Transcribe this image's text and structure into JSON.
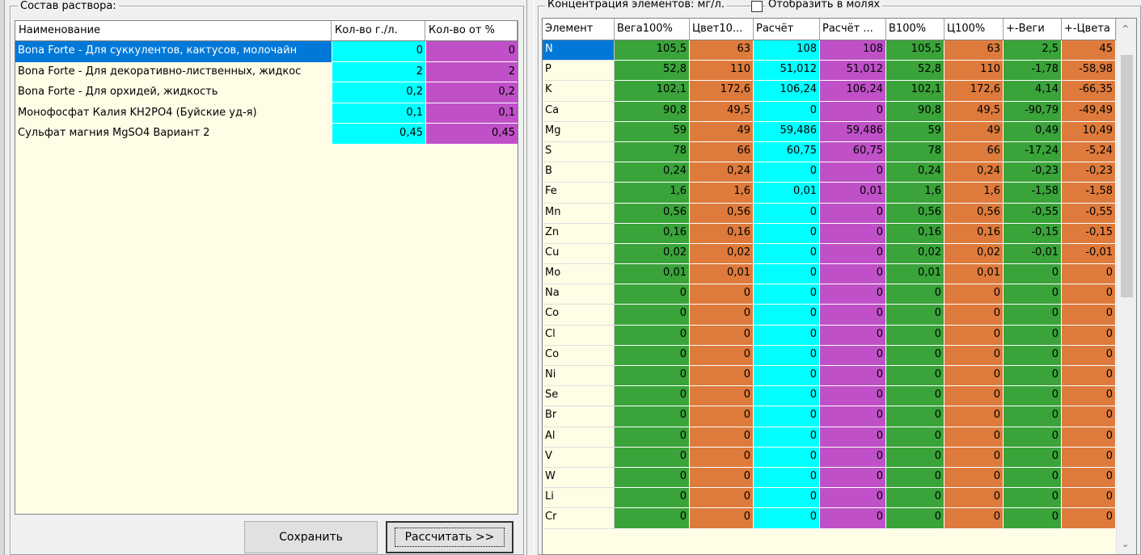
{
  "left": {
    "group_title": "Состав раствора:",
    "headers": {
      "name": "Наименование",
      "qty": "Кол-во г./л.",
      "pct": "Кол-во от %"
    },
    "rows": [
      {
        "name": "Bona Forte - Для суккулентов, кактусов, молочайн",
        "qty": "0",
        "pct": "0"
      },
      {
        "name": "Bona Forte - Для декоративно-лиственных, жидкос",
        "qty": "2",
        "pct": "2"
      },
      {
        "name": "Bona Forte - Для орхидей, жидкость",
        "qty": "0,2",
        "pct": "0,2"
      },
      {
        "name": "Монофосфат Калия KH2PO4 (Буйские уд-я)",
        "qty": "0,1",
        "pct": "0,1"
      },
      {
        "name": "Сульфат магния MgSO4 Вариант 2",
        "qty": "0,45",
        "pct": "0,45"
      }
    ],
    "save_label": "Сохранить",
    "calc_label": "Рассчитать >>"
  },
  "right": {
    "group_title": "Концентрация элементов: мг/л.",
    "checkbox_label": "Отобразить в молях",
    "headers": [
      "Элемент",
      "Вега100%",
      "Цвет10...",
      "Расчёт",
      "Расчёт ...",
      "В100%",
      "Ц100%",
      "+-Веги",
      "+-Цвета"
    ],
    "rows": [
      [
        "N",
        "105,5",
        "63",
        "108",
        "108",
        "105,5",
        "63",
        "2,5",
        "45"
      ],
      [
        "P",
        "52,8",
        "110",
        "51,012",
        "51,012",
        "52,8",
        "110",
        "-1,78",
        "-58,98"
      ],
      [
        "K",
        "102,1",
        "172,6",
        "106,24",
        "106,24",
        "102,1",
        "172,6",
        "4,14",
        "-66,35"
      ],
      [
        "Ca",
        "90,8",
        "49,5",
        "0",
        "0",
        "90,8",
        "49,5",
        "-90,79",
        "-49,49"
      ],
      [
        "Mg",
        "59",
        "49",
        "59,486",
        "59,486",
        "59",
        "49",
        "0,49",
        "10,49"
      ],
      [
        "S",
        "78",
        "66",
        "60,75",
        "60,75",
        "78",
        "66",
        "-17,24",
        "-5,24"
      ],
      [
        "B",
        "0,24",
        "0,24",
        "0",
        "0",
        "0,24",
        "0,24",
        "-0,23",
        "-0,23"
      ],
      [
        "Fe",
        "1,6",
        "1,6",
        "0,01",
        "0,01",
        "1,6",
        "1,6",
        "-1,58",
        "-1,58"
      ],
      [
        "Mn",
        "0,56",
        "0,56",
        "0",
        "0",
        "0,56",
        "0,56",
        "-0,55",
        "-0,55"
      ],
      [
        "Zn",
        "0,16",
        "0,16",
        "0",
        "0",
        "0,16",
        "0,16",
        "-0,15",
        "-0,15"
      ],
      [
        "Cu",
        "0,02",
        "0,02",
        "0",
        "0",
        "0,02",
        "0,02",
        "-0,01",
        "-0,01"
      ],
      [
        "Mo",
        "0,01",
        "0,01",
        "0",
        "0",
        "0,01",
        "0,01",
        "0",
        "0"
      ],
      [
        "Na",
        "0",
        "0",
        "0",
        "0",
        "0",
        "0",
        "0",
        "0"
      ],
      [
        "Co",
        "0",
        "0",
        "0",
        "0",
        "0",
        "0",
        "0",
        "0"
      ],
      [
        "Cl",
        "0",
        "0",
        "0",
        "0",
        "0",
        "0",
        "0",
        "0"
      ],
      [
        "Co",
        "0",
        "0",
        "0",
        "0",
        "0",
        "0",
        "0",
        "0"
      ],
      [
        "Ni",
        "0",
        "0",
        "0",
        "0",
        "0",
        "0",
        "0",
        "0"
      ],
      [
        "Se",
        "0",
        "0",
        "0",
        "0",
        "0",
        "0",
        "0",
        "0"
      ],
      [
        "Br",
        "0",
        "0",
        "0",
        "0",
        "0",
        "0",
        "0",
        "0"
      ],
      [
        "Al",
        "0",
        "0",
        "0",
        "0",
        "0",
        "0",
        "0",
        "0"
      ],
      [
        "V",
        "0",
        "0",
        "0",
        "0",
        "0",
        "0",
        "0",
        "0"
      ],
      [
        "W",
        "0",
        "0",
        "0",
        "0",
        "0",
        "0",
        "0",
        "0"
      ],
      [
        "Li",
        "0",
        "0",
        "0",
        "0",
        "0",
        "0",
        "0",
        "0"
      ],
      [
        "Cr",
        "0",
        "0",
        "0",
        "0",
        "0",
        "0",
        "0",
        "0"
      ]
    ]
  },
  "colors": {
    "green": "#3aa33a",
    "orange": "#de7b3c",
    "cyan": "#00ffff",
    "purple": "#c050c8",
    "selection": "#0078d7",
    "grid_bg": "#fffde6"
  },
  "icons": {
    "scroll_up": "scroll-up-arrow-icon",
    "scroll_down": "scroll-down-arrow-icon"
  }
}
